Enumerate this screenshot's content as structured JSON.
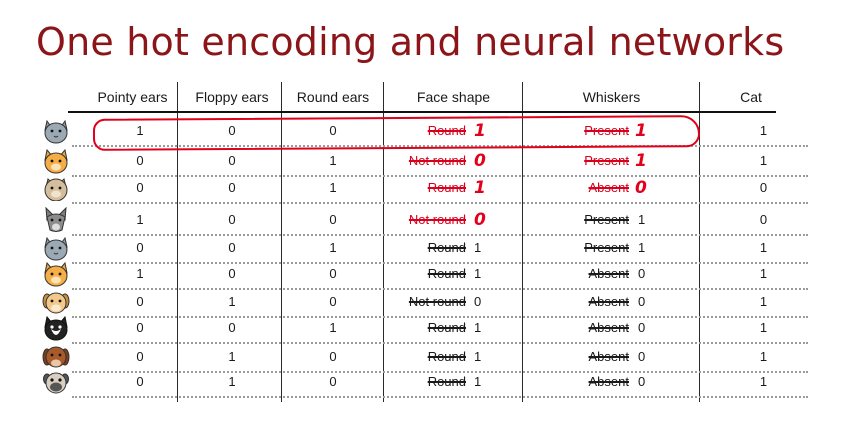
{
  "title": "One hot encoding and neural networks",
  "headers": [
    "Pointy ears",
    "Floppy ears",
    "Round ears",
    "Face shape",
    "Whiskers",
    "Cat"
  ],
  "rows": [
    {
      "icon": "gray-cat-icon",
      "pointy": "1",
      "floppy": "0",
      "round": "0",
      "face_text": "Round",
      "face_val": "1",
      "face_red": true,
      "wh_text": "Present",
      "wh_val": "1",
      "wh_red": true,
      "cat": "1"
    },
    {
      "icon": "orange-cat-icon",
      "pointy": "0",
      "floppy": "0",
      "round": "1",
      "face_text": "Not round",
      "face_val": "0",
      "face_red": true,
      "wh_text": "Present",
      "wh_val": "1",
      "wh_red": true,
      "cat": "1"
    },
    {
      "icon": "tan-cat-icon",
      "pointy": "0",
      "floppy": "0",
      "round": "1",
      "face_text": "Round",
      "face_val": "1",
      "face_red": true,
      "wh_text": "Absent",
      "wh_val": "0",
      "wh_red": true,
      "cat": "0"
    },
    {
      "icon": "gray-dog-icon",
      "pointy": "1",
      "floppy": "0",
      "round": "0",
      "face_text": "Not round",
      "face_val": "0",
      "face_red": true,
      "wh_text": "Present",
      "wh_val": "1",
      "wh_red": false,
      "cat": "0"
    },
    {
      "icon": "gray-cat-icon",
      "pointy": "0",
      "floppy": "0",
      "round": "1",
      "face_text": "Round",
      "face_val": "1",
      "face_red": false,
      "wh_text": "Present",
      "wh_val": "1",
      "wh_red": false,
      "cat": "1"
    },
    {
      "icon": "orange-cat-icon",
      "pointy": "1",
      "floppy": "0",
      "round": "0",
      "face_text": "Round",
      "face_val": "1",
      "face_red": false,
      "wh_text": "Absent",
      "wh_val": "0",
      "wh_red": false,
      "cat": "1"
    },
    {
      "icon": "tan-dog-icon",
      "pointy": "0",
      "floppy": "1",
      "round": "0",
      "face_text": "Not round",
      "face_val": "0",
      "face_red": false,
      "wh_text": "Absent",
      "wh_val": "0",
      "wh_red": false,
      "cat": "1"
    },
    {
      "icon": "tuxedo-cat-icon",
      "pointy": "0",
      "floppy": "0",
      "round": "1",
      "face_text": "Round",
      "face_val": "1",
      "face_red": false,
      "wh_text": "Absent",
      "wh_val": "0",
      "wh_red": false,
      "cat": "1"
    },
    {
      "icon": "brown-dog-icon",
      "pointy": "0",
      "floppy": "1",
      "round": "0",
      "face_text": "Round",
      "face_val": "1",
      "face_red": false,
      "wh_text": "Absent",
      "wh_val": "0",
      "wh_red": false,
      "cat": "1"
    },
    {
      "icon": "pug-dog-icon",
      "pointy": "0",
      "floppy": "1",
      "round": "0",
      "face_text": "Round",
      "face_val": "1",
      "face_red": false,
      "wh_text": "Absent",
      "wh_val": "0",
      "wh_red": false,
      "cat": "1"
    }
  ],
  "colors": {
    "title": "#8b1518",
    "annotation": "#e3001a"
  }
}
